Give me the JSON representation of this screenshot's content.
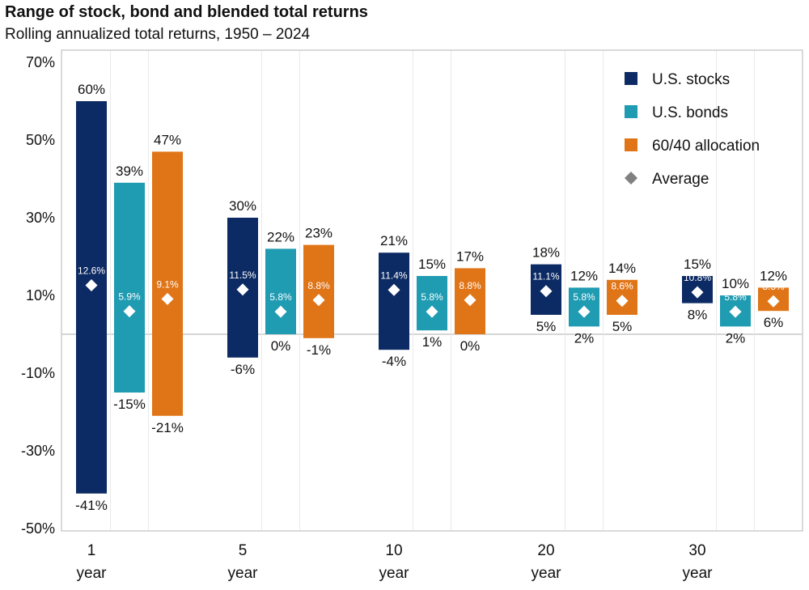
{
  "header": {
    "title": "Range of stock, bond and blended total returns",
    "subtitle": "Rolling annualized total returns, 1950 – 2024"
  },
  "chart_data": {
    "type": "bar",
    "title": "Range of stock, bond and blended total returns",
    "subtitle": "Rolling annualized total returns, 1950 – 2024",
    "xlabel": "",
    "ylabel": "",
    "ylim": [
      -50,
      70
    ],
    "yticks": [
      -50,
      -30,
      -10,
      10,
      30,
      50,
      70
    ],
    "ytick_labels": [
      "-50%",
      "-30%",
      "-10%",
      "10%",
      "30%",
      "50%",
      "70%"
    ],
    "grid": false,
    "legend_position": "top-right",
    "categories": [
      {
        "num": "1",
        "unit": "year"
      },
      {
        "num": "5",
        "unit": "year"
      },
      {
        "num": "10",
        "unit": "year"
      },
      {
        "num": "20",
        "unit": "year"
      },
      {
        "num": "30",
        "unit": "year"
      }
    ],
    "average_marker_name": "Average",
    "average_marker_color": "#ffffff",
    "legend_marker_color": "#808080",
    "series": [
      {
        "name": "U.S. stocks",
        "color": "#0c2a63",
        "max": [
          60,
          30,
          21,
          18,
          15
        ],
        "min": [
          -41,
          -6,
          -4,
          5,
          8
        ],
        "avg": [
          12.6,
          11.5,
          11.4,
          11.1,
          10.8
        ],
        "max_labels": [
          "60%",
          "30%",
          "21%",
          "18%",
          "15%"
        ],
        "min_labels": [
          "-41%",
          "-6%",
          "-4%",
          "5%",
          "8%"
        ],
        "avg_labels": [
          "12.6%",
          "11.5%",
          "11.4%",
          "11.1%",
          "10.8%"
        ]
      },
      {
        "name": "U.S. bonds",
        "color": "#1f9bb2",
        "max": [
          39,
          22,
          15,
          12,
          10
        ],
        "min": [
          -15,
          0,
          1,
          2,
          2
        ],
        "avg": [
          5.9,
          5.8,
          5.8,
          5.8,
          5.8
        ],
        "max_labels": [
          "39%",
          "22%",
          "15%",
          "12%",
          "10%"
        ],
        "min_labels": [
          "-15%",
          "0%",
          "1%",
          "2%",
          "2%"
        ],
        "avg_labels": [
          "5.9%",
          "5.8%",
          "5.8%",
          "5.8%",
          "5.8%"
        ]
      },
      {
        "name": "60/40 allocation",
        "color": "#e07518",
        "max": [
          47,
          23,
          17,
          14,
          12
        ],
        "min": [
          -21,
          -1,
          0,
          5,
          6
        ],
        "avg": [
          9.1,
          8.8,
          8.8,
          8.6,
          8.5
        ],
        "max_labels": [
          "47%",
          "23%",
          "17%",
          "14%",
          "12%"
        ],
        "min_labels": [
          "-21%",
          "-1%",
          "0%",
          "5%",
          "6%"
        ],
        "avg_labels": [
          "9.1%",
          "8.8%",
          "8.8%",
          "8.6%",
          "8.5%"
        ]
      }
    ]
  }
}
